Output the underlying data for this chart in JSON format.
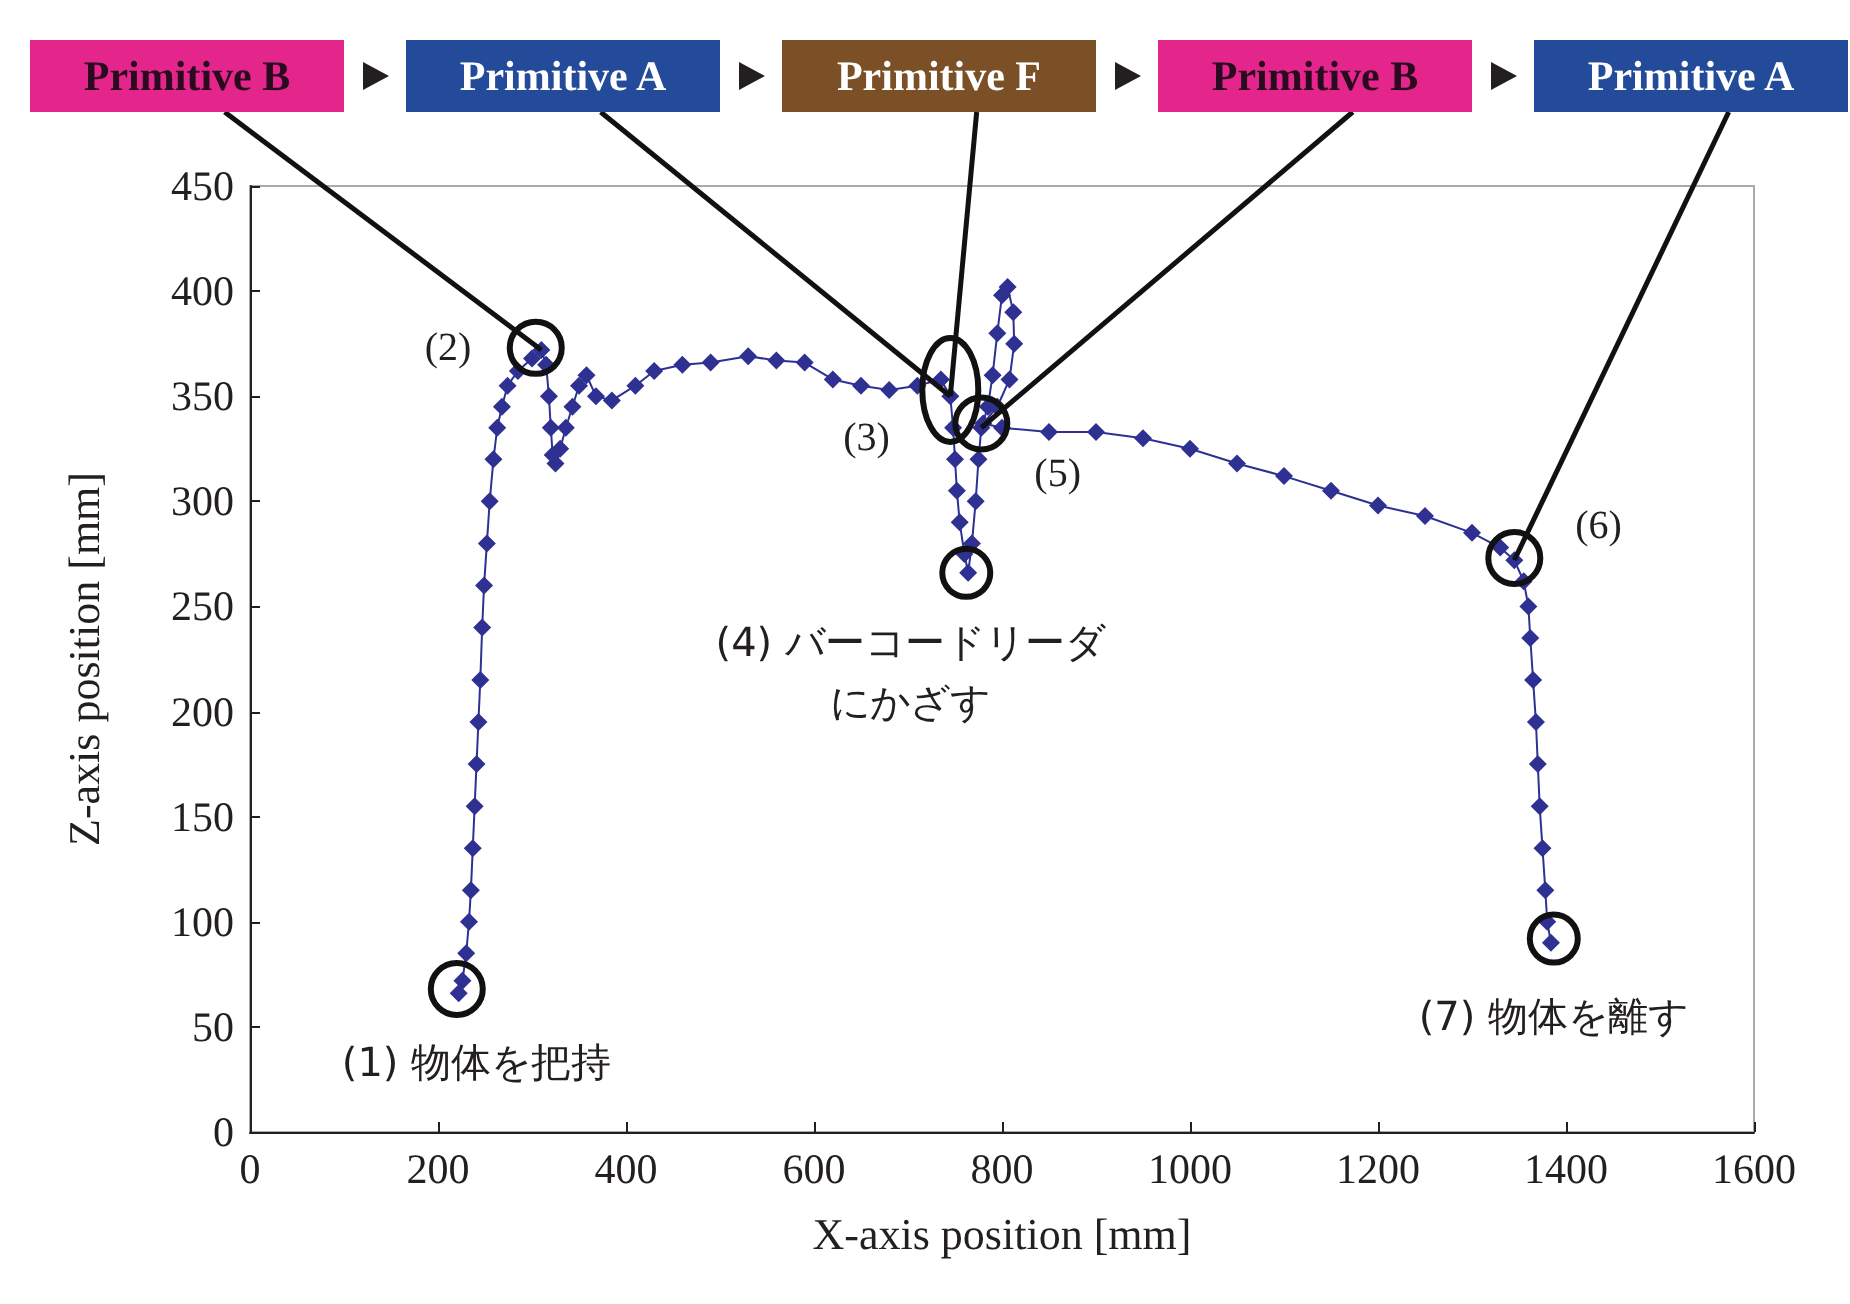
{
  "chart_data": {
    "type": "line",
    "xlabel": "X-axis position [mm]",
    "ylabel": "Z-axis position [mm]",
    "xlim": [
      0,
      1600
    ],
    "xticks": [
      0,
      200,
      400,
      600,
      800,
      1000,
      1200,
      1400,
      1600
    ],
    "ylim": [
      0,
      450
    ],
    "yticks": [
      0,
      50,
      100,
      150,
      200,
      250,
      300,
      350,
      400,
      450
    ],
    "grid": false,
    "marker": "diamond",
    "line_style": "solid",
    "series": [
      {
        "color": "#2e3192",
        "x": [
          222,
          226,
          230,
          233,
          235,
          237,
          239,
          241,
          243,
          245,
          247,
          249,
          252,
          255,
          259,
          263,
          268,
          274,
          285,
          300,
          310,
          315,
          318,
          320,
          322,
          325,
          330,
          336,
          343,
          350,
          358,
          368,
          385,
          410,
          430,
          460,
          490,
          530,
          560,
          590,
          620,
          650,
          680,
          710,
          735,
          745,
          748,
          750,
          752,
          755,
          760,
          764,
          768,
          772,
          775,
          778,
          785,
          790,
          795,
          800,
          806,
          812,
          813,
          808,
          795,
          780,
          800,
          850,
          900,
          950,
          1000,
          1050,
          1100,
          1150,
          1200,
          1250,
          1300,
          1330,
          1345,
          1355,
          1360,
          1362,
          1365,
          1368,
          1370,
          1372,
          1375,
          1378,
          1380,
          1384
        ],
        "values": [
          66,
          72,
          85,
          100,
          115,
          135,
          155,
          175,
          195,
          215,
          240,
          260,
          280,
          300,
          320,
          335,
          345,
          355,
          362,
          368,
          372,
          365,
          350,
          335,
          322,
          318,
          325,
          335,
          345,
          355,
          360,
          350,
          348,
          355,
          362,
          365,
          366,
          369,
          367,
          366,
          358,
          355,
          353,
          355,
          358,
          350,
          335,
          320,
          305,
          290,
          275,
          266,
          280,
          300,
          320,
          335,
          345,
          360,
          380,
          398,
          402,
          390,
          375,
          358,
          345,
          337,
          335,
          333,
          333,
          330,
          325,
          318,
          312,
          305,
          298,
          293,
          285,
          278,
          272,
          262,
          250,
          235,
          215,
          195,
          175,
          155,
          135,
          115,
          100,
          90
        ]
      }
    ],
    "annotations": [
      {
        "text": "(1) 物体を把持",
        "x": 220,
        "y": 68
      },
      {
        "text": "(2)",
        "x": 304,
        "y": 373
      },
      {
        "text": "(3)",
        "x": 745,
        "y": 353
      },
      {
        "text": "(4) バーコードリーダにかざす",
        "x": 762,
        "y": 266
      },
      {
        "text": "(5)",
        "x": 778,
        "y": 337
      },
      {
        "text": "(6)",
        "x": 1345,
        "y": 273
      },
      {
        "text": "(7) 物体を離す",
        "x": 1387,
        "y": 92
      },
      {
        "text": "Primitive B",
        "x": 310,
        "y": 372
      },
      {
        "text": "Primitive A",
        "x": 745,
        "y": 350
      },
      {
        "text": "Primitive F",
        "x": 745,
        "y": 350
      },
      {
        "text": "Primitive B",
        "x": 778,
        "y": 335
      },
      {
        "text": "Primitive A",
        "x": 1345,
        "y": 272
      }
    ]
  }
}
